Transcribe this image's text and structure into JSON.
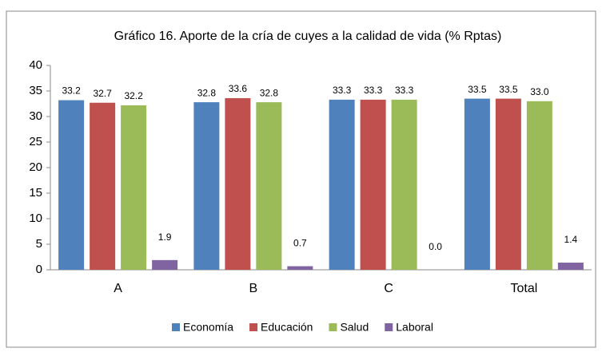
{
  "chart_data": {
    "type": "bar",
    "title": "Gráfico 16. Aporte de la cría de cuyes a la calidad de vida (% Rptas)",
    "categories": [
      "A",
      "B",
      "C",
      "Total"
    ],
    "series": [
      {
        "name": "Economía",
        "color": "#4f81bd",
        "values": [
          33.2,
          32.8,
          33.3,
          33.5
        ],
        "value_labels": [
          "33.2",
          "32.8",
          "33.3",
          "33.5"
        ]
      },
      {
        "name": "Educación",
        "color": "#c0504d",
        "values": [
          32.7,
          33.6,
          33.3,
          33.5
        ],
        "value_labels": [
          "32.7",
          "33.6",
          "33.3",
          "33.5"
        ]
      },
      {
        "name": "Salud",
        "color": "#9bbb59",
        "values": [
          32.2,
          32.8,
          33.3,
          33.0
        ],
        "value_labels": [
          "32.2",
          "32.8",
          "33.3",
          "33.0"
        ]
      },
      {
        "name": "Laboral",
        "color": "#8064a2",
        "values": [
          1.9,
          0.7,
          0.0,
          1.4
        ],
        "value_labels": [
          "1.9",
          "0.7",
          "0.0",
          "1.4"
        ]
      }
    ],
    "ylim": [
      0,
      40
    ],
    "yticks": [
      0,
      5,
      10,
      15,
      20,
      25,
      30,
      35,
      40
    ],
    "grid": false,
    "legend": "bottom"
  }
}
